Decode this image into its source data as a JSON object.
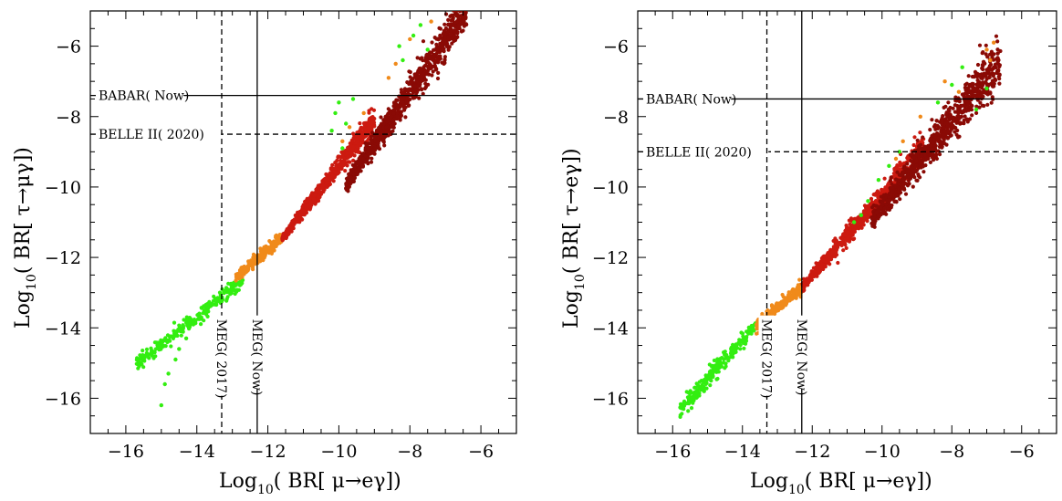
{
  "chart_data": [
    {
      "type": "scatter",
      "xlabel": "Log10(BR[μ→eγ])",
      "ylabel": "Log10(BR[τ→μγ])",
      "xlim": [
        -17,
        -5
      ],
      "ylim": [
        -17,
        -5
      ],
      "xticks": [
        "−16",
        "−14",
        "−12",
        "−10",
        "−8",
        "−6"
      ],
      "yticks": [
        "−6",
        "−8",
        "−10",
        "−12",
        "−14",
        "−16"
      ],
      "grid": false,
      "colors": {
        "green": "#33ee11",
        "orange": "#f08a1a",
        "red": "#cc1a10",
        "darkred": "#8a0a05"
      },
      "bands": [
        {
          "color": "green",
          "x": [
            -15.7,
            -12.7
          ],
          "y": [
            -15.1,
            -12.7
          ],
          "spread": 0.15
        },
        {
          "color": "orange",
          "x": [
            -12.9,
            -11.6
          ],
          "y": [
            -12.6,
            -11.5
          ],
          "spread": 0.12
        },
        {
          "color": "red",
          "x": [
            -11.6,
            -9.0
          ],
          "y": [
            -11.5,
            -8.2
          ],
          "spread": 0.25
        },
        {
          "color": "darkred",
          "x": [
            -9.8,
            -6.4
          ],
          "y": [
            -10.0,
            -5.1
          ],
          "spread": 0.45
        }
      ],
      "scatter_outliers": [
        {
          "color": "green",
          "points": [
            [
              -15.0,
              -16.2
            ],
            [
              -14.8,
              -15.3
            ],
            [
              -14.9,
              -15.6
            ],
            [
              -14.5,
              -14.6
            ],
            [
              -14.3,
              -14.3
            ],
            [
              -14.6,
              -14.9
            ],
            [
              -10.1,
              -7.9
            ],
            [
              -10.0,
              -7.6
            ],
            [
              -9.8,
              -8.2
            ],
            [
              -9.6,
              -7.5
            ],
            [
              -8.3,
              -6.0
            ],
            [
              -8.2,
              -6.4
            ],
            [
              -7.9,
              -5.7
            ],
            [
              -7.7,
              -5.4
            ],
            [
              -7.5,
              -6.1
            ],
            [
              -10.2,
              -8.4
            ],
            [
              -9.9,
              -8.9
            ]
          ]
        },
        {
          "color": "orange",
          "points": [
            [
              -9.9,
              -8.7
            ],
            [
              -9.7,
              -8.3
            ],
            [
              -9.3,
              -7.9
            ],
            [
              -8.6,
              -6.9
            ],
            [
              -8.4,
              -6.5
            ],
            [
              -8.0,
              -5.8
            ],
            [
              -7.4,
              -5.3
            ]
          ]
        }
      ],
      "reference_lines": [
        {
          "orientation": "horizontal",
          "value": -7.4,
          "style": "solid",
          "label": "BABAR( Now)"
        },
        {
          "orientation": "horizontal",
          "value": -8.5,
          "style": "dashed",
          "label": "BELLE  II( 2020)"
        },
        {
          "orientation": "vertical",
          "value": -12.3,
          "style": "solid",
          "label": "MEG( Now)"
        },
        {
          "orientation": "vertical",
          "value": -13.3,
          "style": "dashed",
          "label": "MEG( 2017)"
        }
      ]
    },
    {
      "type": "scatter",
      "xlabel": "Log10(BR[μ→eγ])",
      "ylabel": "Log10(BR[τ→eγ])",
      "xlim": [
        -17,
        -5
      ],
      "ylim": [
        -17,
        -5
      ],
      "xticks": [
        "−16",
        "−14",
        "−12",
        "−10",
        "−8",
        "−6"
      ],
      "yticks": [
        "−6",
        "−8",
        "−10",
        "−12",
        "−14",
        "−16"
      ],
      "grid": false,
      "colors": {
        "green": "#33ee11",
        "orange": "#f08a1a",
        "red": "#cc1a10",
        "darkred": "#8a0a05"
      },
      "bands": [
        {
          "color": "green",
          "x": [
            -15.8,
            -13.6
          ],
          "y": [
            -16.4,
            -14.0
          ],
          "spread": 0.18
        },
        {
          "color": "orange",
          "x": [
            -13.6,
            -12.3
          ],
          "y": [
            -14.0,
            -12.9
          ],
          "spread": 0.12
        },
        {
          "color": "red",
          "x": [
            -12.3,
            -8.8
          ],
          "y": [
            -12.9,
            -9.0
          ],
          "spread": 0.3
        },
        {
          "color": "darkred",
          "x": [
            -10.3,
            -6.6
          ],
          "y": [
            -11.0,
            -6.6
          ],
          "spread": 0.55
        }
      ],
      "scatter_outliers": [
        {
          "color": "green",
          "points": [
            [
              -15.4,
              -16.0
            ],
            [
              -15.1,
              -15.8
            ],
            [
              -14.9,
              -15.5
            ],
            [
              -14.6,
              -15.1
            ],
            [
              -10.8,
              -11.0
            ],
            [
              -10.4,
              -10.4
            ],
            [
              -10.1,
              -9.8
            ],
            [
              -9.8,
              -9.4
            ],
            [
              -8.4,
              -7.6
            ],
            [
              -8.0,
              -7.1
            ],
            [
              -7.7,
              -6.6
            ],
            [
              -7.3,
              -7.8
            ],
            [
              -7.0,
              -7.2
            ],
            [
              -10.6,
              -10.8
            ],
            [
              -9.5,
              -9.0
            ]
          ]
        },
        {
          "color": "orange",
          "points": [
            [
              -9.6,
              -9.2
            ],
            [
              -9.4,
              -8.7
            ],
            [
              -8.9,
              -8.0
            ],
            [
              -8.2,
              -7.0
            ],
            [
              -7.8,
              -7.3
            ],
            [
              -7.0,
              -6.1
            ],
            [
              -6.9,
              -6.4
            ],
            [
              -6.8,
              -5.9
            ]
          ]
        }
      ],
      "reference_lines": [
        {
          "orientation": "horizontal",
          "value": -7.5,
          "style": "solid",
          "label": "BABAR( Now)"
        },
        {
          "orientation": "horizontal",
          "value": -9.0,
          "style": "dashed",
          "label": "BELLE  II( 2020)"
        },
        {
          "orientation": "vertical",
          "value": -12.3,
          "style": "solid",
          "label": "MEG( Now)"
        },
        {
          "orientation": "vertical",
          "value": -13.3,
          "style": "dashed",
          "label": "MEG( 2017)"
        }
      ]
    }
  ],
  "labels": {
    "log": "Log",
    "sub10": "10",
    "left_ylabel_tail": "( BR[ τ→μγ])",
    "right_ylabel_tail": "( BR[ τ→eγ])",
    "xlabel_tail": "( BR[ μ→eγ])"
  }
}
